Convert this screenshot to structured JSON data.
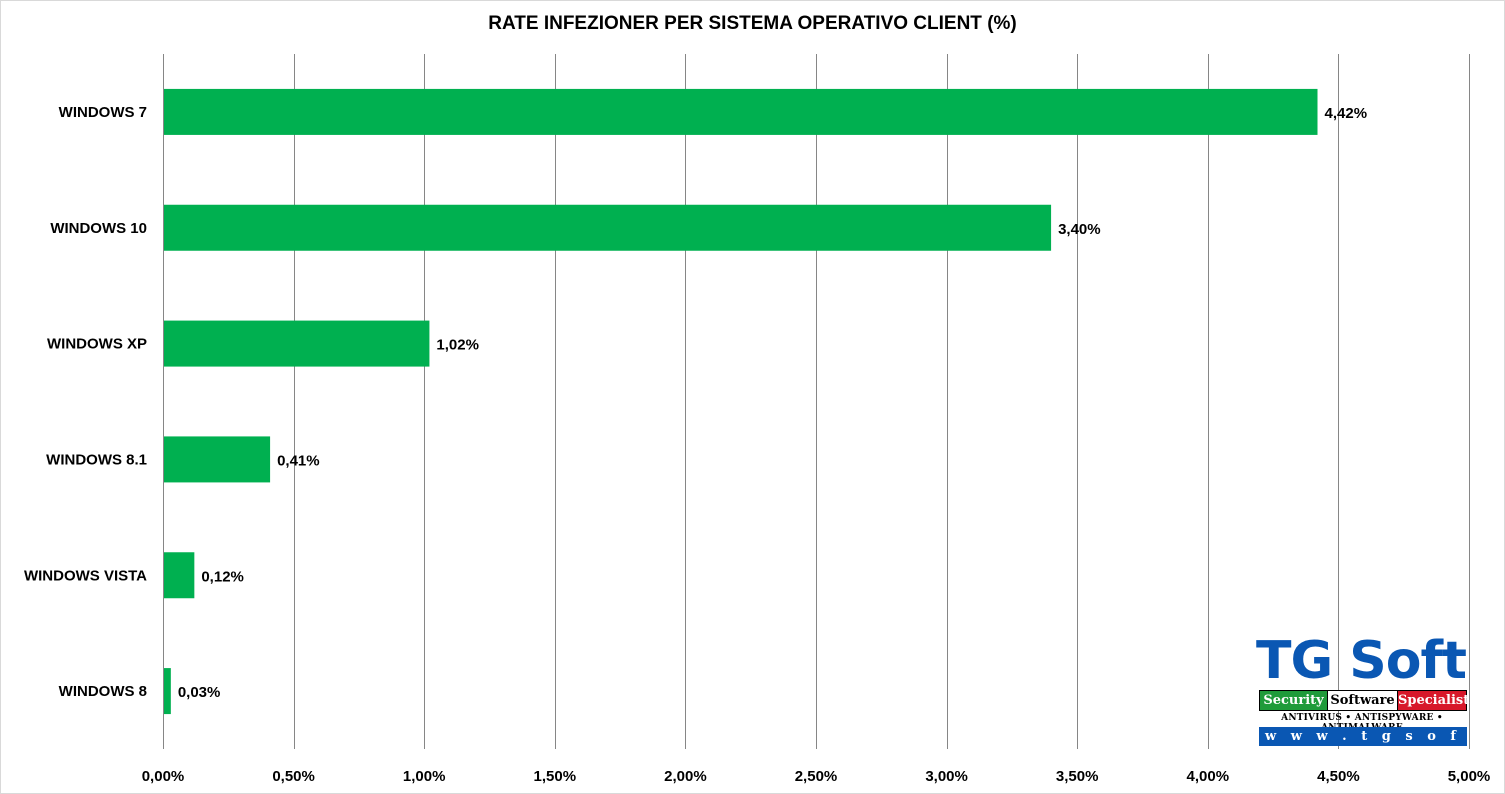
{
  "chart_data": {
    "type": "bar",
    "orientation": "horizontal",
    "title": "RATE INFEZIONER PER SISTEMA OPERATIVO CLIENT (%)",
    "categories": [
      "WINDOWS 7",
      "WINDOWS 10",
      "WINDOWS XP",
      "WINDOWS 8.1",
      "WINDOWS VISTA",
      "WINDOWS 8"
    ],
    "values": [
      4.42,
      3.4,
      1.02,
      0.41,
      0.12,
      0.03
    ],
    "data_labels": [
      "4,42%",
      "3,40%",
      "1,02%",
      "0,41%",
      "0,12%",
      "0,03%"
    ],
    "xlim": [
      0,
      5
    ],
    "x_ticks": [
      0,
      0.5,
      1,
      1.5,
      2,
      2.5,
      3,
      3.5,
      4,
      4.5,
      5
    ],
    "x_tick_labels": [
      "0,00%",
      "0,50%",
      "1,00%",
      "1,50%",
      "2,00%",
      "2,50%",
      "3,00%",
      "3,50%",
      "4,00%",
      "4,50%",
      "5,00%"
    ],
    "grid": "vertical",
    "legend": "none",
    "bar_color": "#00b050"
  },
  "logo": {
    "brand": "TG Soft",
    "strip": [
      "Security",
      "Software",
      "Specialist"
    ],
    "tagline": "ANTIVIRUS • ANTISPYWARE • ANTIMALWARE",
    "url": "w w w . t g s o f t . i t"
  }
}
